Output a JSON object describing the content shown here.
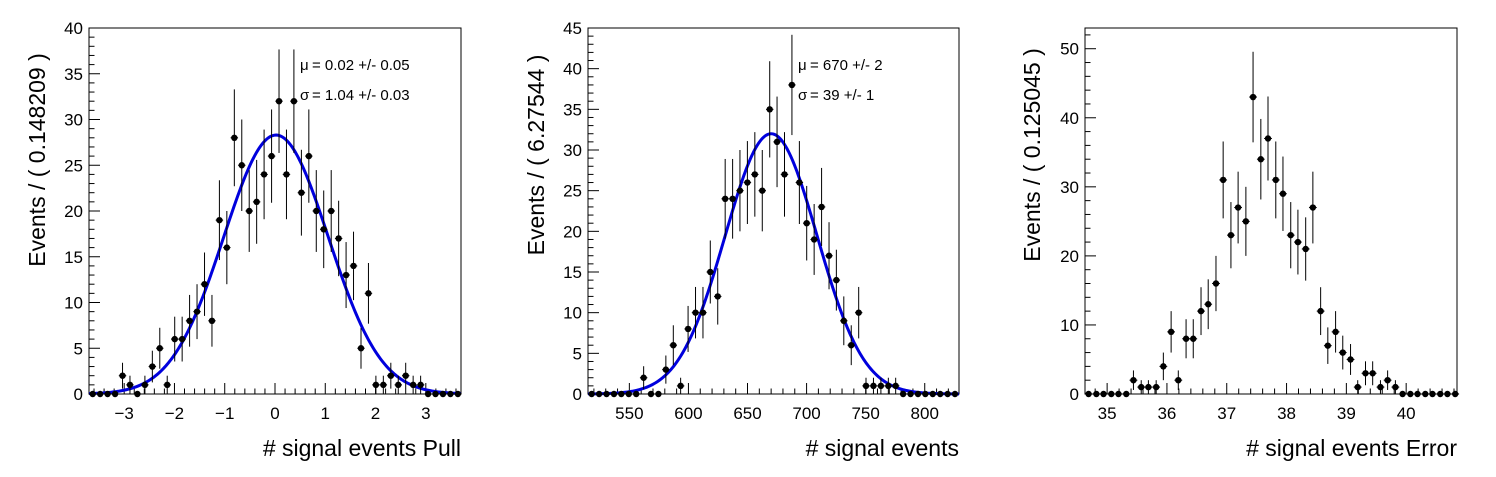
{
  "chart_data": [
    {
      "type": "scatter",
      "xlabel": "# signal events Pull",
      "ylabel": "Events / ( 0.148209 )",
      "xlim": [
        -3.7,
        3.7
      ],
      "ylim": [
        0,
        40
      ],
      "xticks": [
        -3,
        -2,
        -1,
        0,
        1,
        2,
        3
      ],
      "yticks": [
        0,
        5,
        10,
        15,
        20,
        25,
        30,
        35,
        40
      ],
      "stats": [
        {
          "sym": "μ",
          "text": "=  0.02 +/- 0.05"
        },
        {
          "sym": "σ",
          "text": "=  1.04 +/- 0.03"
        }
      ],
      "x": [
        -3.626,
        -3.478,
        -3.33,
        -3.181,
        -3.033,
        -2.885,
        -2.737,
        -2.588,
        -2.44,
        -2.292,
        -2.144,
        -1.995,
        -1.847,
        -1.699,
        -1.551,
        -1.402,
        -1.254,
        -1.106,
        -0.958,
        -0.809,
        -0.661,
        -0.513,
        -0.365,
        -0.217,
        -0.068,
        0.08,
        0.228,
        0.376,
        0.525,
        0.673,
        0.821,
        0.969,
        1.118,
        1.266,
        1.414,
        1.562,
        1.711,
        1.859,
        2.007,
        2.155,
        2.304,
        2.452,
        2.6,
        2.748,
        2.897,
        3.045,
        3.193,
        3.341,
        3.49,
        3.638
      ],
      "y": [
        0,
        0,
        0,
        0,
        2,
        1,
        0,
        1,
        3,
        5,
        1,
        6,
        6,
        8,
        9,
        12,
        8,
        19,
        16,
        28,
        25,
        20,
        21,
        24,
        26,
        32,
        24,
        32,
        22,
        26,
        20,
        18,
        20,
        17,
        13,
        14,
        5,
        11,
        1,
        1,
        2,
        1,
        2,
        1,
        1,
        0,
        0,
        0,
        0,
        0
      ],
      "fit": {
        "mean": 0.02,
        "sigma": 1.04,
        "amplitude": 28.3,
        "color": "#0000dd"
      }
    },
    {
      "type": "scatter",
      "xlabel": "# signal events",
      "ylabel": "Events / ( 6.27544 )",
      "xlim": [
        515,
        829
      ],
      "ylim": [
        0,
        45
      ],
      "xticks": [
        550,
        600,
        650,
        700,
        750,
        800
      ],
      "yticks": [
        0,
        5,
        10,
        15,
        20,
        25,
        30,
        35,
        40,
        45
      ],
      "stats": [
        {
          "sym": "μ",
          "text": "=  670 +/- 2"
        },
        {
          "sym": "σ",
          "text": "=  39 +/- 1"
        }
      ],
      "x": [
        518.1,
        524.4,
        530.7,
        537.0,
        543.2,
        549.5,
        555.8,
        562.1,
        568.3,
        574.6,
        580.9,
        587.2,
        593.4,
        599.7,
        606.0,
        612.3,
        618.5,
        624.8,
        631.1,
        637.4,
        643.6,
        649.9,
        656.2,
        662.5,
        668.8,
        675.0,
        681.3,
        687.6,
        693.9,
        700.1,
        706.4,
        712.7,
        719.0,
        725.2,
        731.5,
        737.8,
        744.1,
        750.3,
        756.6,
        762.9,
        769.2,
        775.4,
        781.7,
        788.0,
        794.3,
        800.5,
        806.8,
        813.1,
        819.4,
        825.6
      ],
      "y": [
        0,
        0,
        0,
        0,
        0,
        0,
        0,
        2,
        0,
        0,
        3,
        6,
        1,
        8,
        10,
        10,
        15,
        12,
        24,
        24,
        25,
        26,
        27,
        25,
        35,
        31,
        27,
        38,
        26,
        21,
        19,
        23,
        17,
        14,
        9,
        6,
        10,
        1,
        1,
        1,
        1,
        1,
        0,
        0,
        0,
        0,
        0,
        0,
        0,
        0
      ],
      "fit": {
        "mean": 670,
        "sigma": 39,
        "amplitude": 32,
        "color": "#0000dd"
      }
    },
    {
      "type": "scatter",
      "xlabel": "# signal events Error",
      "ylabel": "Events / ( 0.125045 )",
      "xlim": [
        34.63,
        40.85
      ],
      "ylim": [
        0,
        53
      ],
      "xticks": [
        35,
        36,
        37,
        38,
        39,
        40
      ],
      "yticks": [
        0,
        10,
        20,
        30,
        40,
        50
      ],
      "stats": [],
      "x": [
        34.69,
        34.82,
        34.94,
        35.07,
        35.19,
        35.32,
        35.44,
        35.57,
        35.69,
        35.82,
        35.94,
        36.07,
        36.19,
        36.32,
        36.44,
        36.57,
        36.69,
        36.82,
        36.94,
        37.07,
        37.19,
        37.32,
        37.44,
        37.57,
        37.69,
        37.82,
        37.94,
        38.07,
        38.19,
        38.32,
        38.44,
        38.57,
        38.69,
        38.82,
        38.94,
        39.07,
        39.19,
        39.32,
        39.44,
        39.57,
        39.69,
        39.82,
        39.94,
        40.07,
        40.19,
        40.32,
        40.44,
        40.57,
        40.69,
        40.82
      ],
      "y": [
        0,
        0,
        0,
        0,
        0,
        0,
        2,
        1,
        1,
        1,
        4,
        9,
        2,
        8,
        8,
        12,
        13,
        16,
        31,
        23,
        27,
        25,
        43,
        34,
        37,
        31,
        29,
        23,
        22,
        21,
        27,
        12,
        7,
        9,
        6,
        5,
        1,
        3,
        3,
        1,
        2,
        1,
        0,
        0,
        0,
        0,
        0,
        0,
        0,
        0
      ]
    }
  ]
}
